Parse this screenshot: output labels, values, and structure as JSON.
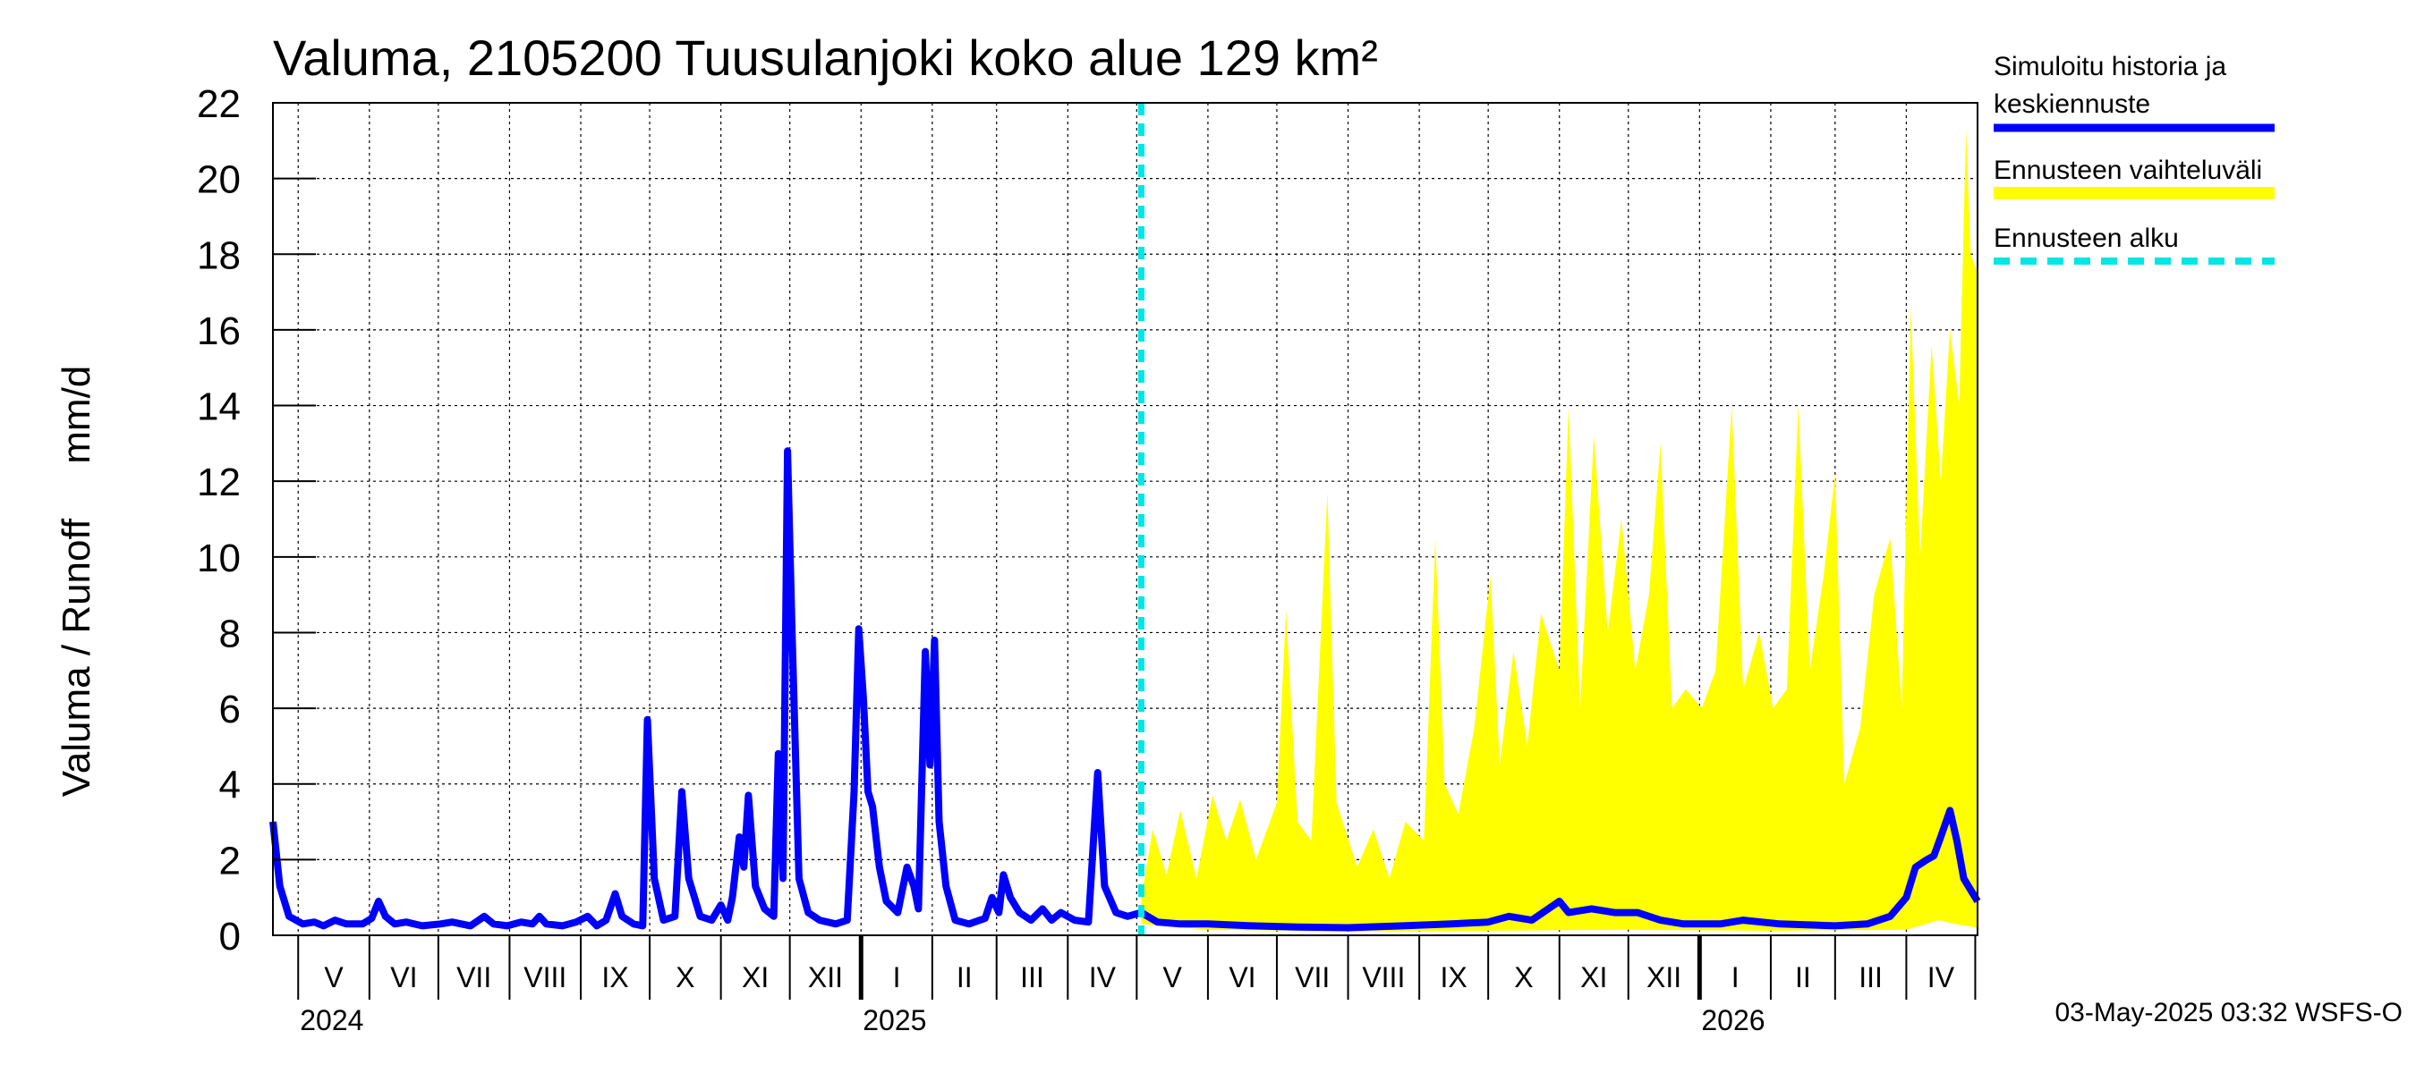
{
  "chart_data": {
    "type": "line",
    "title": "Valuma, 2105200 Tuusulanjoki koko alue 129 km²",
    "ylabel": "Valuma / Runoff     mm/d",
    "ylim": [
      0,
      22
    ],
    "yticks": [
      "0",
      "2",
      "4",
      "6",
      "8",
      "10",
      "12",
      "14",
      "16",
      "18",
      "20",
      "22"
    ],
    "xlim": [
      "2024-04-20",
      "2026-05-02"
    ],
    "grid": true,
    "months": [
      {
        "label": "V",
        "start": "2024-05-01",
        "end": "2024-06-01"
      },
      {
        "label": "VI",
        "start": "2024-06-01",
        "end": "2024-07-01"
      },
      {
        "label": "VII",
        "start": "2024-07-01",
        "end": "2024-08-01"
      },
      {
        "label": "VIII",
        "start": "2024-08-01",
        "end": "2024-09-01"
      },
      {
        "label": "IX",
        "start": "2024-09-01",
        "end": "2024-10-01"
      },
      {
        "label": "X",
        "start": "2024-10-01",
        "end": "2024-11-01"
      },
      {
        "label": "XI",
        "start": "2024-11-01",
        "end": "2024-12-01"
      },
      {
        "label": "XII",
        "start": "2024-12-01",
        "end": "2025-01-01"
      },
      {
        "label": "I",
        "start": "2025-01-01",
        "end": "2025-02-01"
      },
      {
        "label": "II",
        "start": "2025-02-01",
        "end": "2025-03-01"
      },
      {
        "label": "III",
        "start": "2025-03-01",
        "end": "2025-04-01"
      },
      {
        "label": "IV",
        "start": "2025-04-01",
        "end": "2025-05-01"
      },
      {
        "label": "V",
        "start": "2025-05-01",
        "end": "2025-06-01"
      },
      {
        "label": "VI",
        "start": "2025-06-01",
        "end": "2025-07-01"
      },
      {
        "label": "VII",
        "start": "2025-07-01",
        "end": "2025-08-01"
      },
      {
        "label": "VIII",
        "start": "2025-08-01",
        "end": "2025-09-01"
      },
      {
        "label": "IX",
        "start": "2025-09-01",
        "end": "2025-10-01"
      },
      {
        "label": "X",
        "start": "2025-10-01",
        "end": "2025-11-01"
      },
      {
        "label": "XI",
        "start": "2025-11-01",
        "end": "2025-12-01"
      },
      {
        "label": "XII",
        "start": "2025-12-01",
        "end": "2026-01-01"
      },
      {
        "label": "I",
        "start": "2026-01-01",
        "end": "2026-02-01"
      },
      {
        "label": "II",
        "start": "2026-02-01",
        "end": "2026-03-01"
      },
      {
        "label": "III",
        "start": "2026-03-01",
        "end": "2026-04-01"
      },
      {
        "label": "IV",
        "start": "2026-04-01",
        "end": "2026-05-01"
      }
    ],
    "years": [
      {
        "label": "2024",
        "date": "2024-05-01"
      },
      {
        "label": "2025",
        "date": "2025-01-01"
      },
      {
        "label": "2026",
        "date": "2026-01-01"
      }
    ],
    "forecast_start": "2025-05-03",
    "series": [
      {
        "name": "Simuloitu historia ja keskiennuste",
        "color": "#0000ff",
        "points": [
          [
            "2024-04-20",
            3.0
          ],
          [
            "2024-04-23",
            1.3
          ],
          [
            "2024-04-27",
            0.5
          ],
          [
            "2024-05-03",
            0.3
          ],
          [
            "2024-05-08",
            0.35
          ],
          [
            "2024-05-12",
            0.25
          ],
          [
            "2024-05-17",
            0.4
          ],
          [
            "2024-05-22",
            0.3
          ],
          [
            "2024-05-29",
            0.3
          ],
          [
            "2024-06-02",
            0.45
          ],
          [
            "2024-06-05",
            0.9
          ],
          [
            "2024-06-08",
            0.5
          ],
          [
            "2024-06-12",
            0.3
          ],
          [
            "2024-06-17",
            0.35
          ],
          [
            "2024-06-24",
            0.25
          ],
          [
            "2024-07-02",
            0.3
          ],
          [
            "2024-07-07",
            0.35
          ],
          [
            "2024-07-15",
            0.25
          ],
          [
            "2024-07-21",
            0.5
          ],
          [
            "2024-07-25",
            0.3
          ],
          [
            "2024-07-31",
            0.25
          ],
          [
            "2024-08-06",
            0.35
          ],
          [
            "2024-08-11",
            0.3
          ],
          [
            "2024-08-14",
            0.5
          ],
          [
            "2024-08-17",
            0.3
          ],
          [
            "2024-08-24",
            0.25
          ],
          [
            "2024-08-30",
            0.35
          ],
          [
            "2024-09-04",
            0.5
          ],
          [
            "2024-09-08",
            0.25
          ],
          [
            "2024-09-12",
            0.4
          ],
          [
            "2024-09-16",
            1.1
          ],
          [
            "2024-09-19",
            0.5
          ],
          [
            "2024-09-24",
            0.3
          ],
          [
            "2024-09-28",
            0.25
          ],
          [
            "2024-09-30",
            5.7
          ],
          [
            "2024-10-03",
            1.5
          ],
          [
            "2024-10-07",
            0.4
          ],
          [
            "2024-10-12",
            0.5
          ],
          [
            "2024-10-15",
            3.8
          ],
          [
            "2024-10-18",
            1.5
          ],
          [
            "2024-10-23",
            0.5
          ],
          [
            "2024-10-28",
            0.4
          ],
          [
            "2024-11-01",
            0.8
          ],
          [
            "2024-11-04",
            0.4
          ],
          [
            "2024-11-06",
            1.0
          ],
          [
            "2024-11-09",
            2.6
          ],
          [
            "2024-11-11",
            1.8
          ],
          [
            "2024-11-13",
            3.7
          ],
          [
            "2024-11-16",
            1.3
          ],
          [
            "2024-11-20",
            0.7
          ],
          [
            "2024-11-24",
            0.5
          ],
          [
            "2024-11-26",
            4.8
          ],
          [
            "2024-11-28",
            1.5
          ],
          [
            "2024-11-30",
            12.8
          ],
          [
            "2024-12-02",
            8.0
          ],
          [
            "2024-12-05",
            1.5
          ],
          [
            "2024-12-09",
            0.6
          ],
          [
            "2024-12-14",
            0.4
          ],
          [
            "2024-12-21",
            0.3
          ],
          [
            "2024-12-26",
            0.4
          ],
          [
            "2024-12-29",
            3.8
          ],
          [
            "2024-12-31",
            8.1
          ],
          [
            "2025-01-02",
            6.3
          ],
          [
            "2025-01-04",
            3.8
          ],
          [
            "2025-01-06",
            3.4
          ],
          [
            "2025-01-09",
            1.8
          ],
          [
            "2025-01-12",
            0.9
          ],
          [
            "2025-01-17",
            0.6
          ],
          [
            "2025-01-21",
            1.8
          ],
          [
            "2025-01-24",
            1.3
          ],
          [
            "2025-01-26",
            0.7
          ],
          [
            "2025-01-29",
            7.5
          ],
          [
            "2025-01-31",
            4.5
          ],
          [
            "2025-02-02",
            7.8
          ],
          [
            "2025-02-04",
            3.0
          ],
          [
            "2025-02-07",
            1.3
          ],
          [
            "2025-02-11",
            0.4
          ],
          [
            "2025-02-17",
            0.3
          ],
          [
            "2025-02-24",
            0.45
          ],
          [
            "2025-02-27",
            1.0
          ],
          [
            "2025-03-02",
            0.6
          ],
          [
            "2025-03-04",
            1.6
          ],
          [
            "2025-03-07",
            1.0
          ],
          [
            "2025-03-11",
            0.6
          ],
          [
            "2025-03-16",
            0.4
          ],
          [
            "2025-03-21",
            0.7
          ],
          [
            "2025-03-25",
            0.4
          ],
          [
            "2025-03-29",
            0.6
          ],
          [
            "2025-04-04",
            0.4
          ],
          [
            "2025-04-10",
            0.35
          ],
          [
            "2025-04-14",
            4.3
          ],
          [
            "2025-04-17",
            1.3
          ],
          [
            "2025-04-22",
            0.6
          ],
          [
            "2025-04-27",
            0.5
          ],
          [
            "2025-05-03",
            0.6
          ],
          [
            "2025-05-10",
            0.35
          ],
          [
            "2025-05-20",
            0.3
          ],
          [
            "2025-06-01",
            0.3
          ],
          [
            "2025-06-20",
            0.25
          ],
          [
            "2025-07-10",
            0.22
          ],
          [
            "2025-08-01",
            0.2
          ],
          [
            "2025-08-25",
            0.25
          ],
          [
            "2025-09-15",
            0.3
          ],
          [
            "2025-10-01",
            0.35
          ],
          [
            "2025-10-10",
            0.5
          ],
          [
            "2025-10-20",
            0.4
          ],
          [
            "2025-11-01",
            0.9
          ],
          [
            "2025-11-05",
            0.6
          ],
          [
            "2025-11-15",
            0.7
          ],
          [
            "2025-11-25",
            0.6
          ],
          [
            "2025-12-05",
            0.6
          ],
          [
            "2025-12-15",
            0.4
          ],
          [
            "2025-12-25",
            0.3
          ],
          [
            "2026-01-10",
            0.3
          ],
          [
            "2026-01-20",
            0.4
          ],
          [
            "2026-02-05",
            0.3
          ],
          [
            "2026-03-01",
            0.25
          ],
          [
            "2026-03-15",
            0.3
          ],
          [
            "2026-03-25",
            0.5
          ],
          [
            "2026-04-01",
            1.0
          ],
          [
            "2026-04-05",
            1.8
          ],
          [
            "2026-04-10",
            2.0
          ],
          [
            "2026-04-13",
            2.1
          ],
          [
            "2026-04-16",
            2.6
          ],
          [
            "2026-04-20",
            3.3
          ],
          [
            "2026-04-23",
            2.5
          ],
          [
            "2026-04-26",
            1.5
          ],
          [
            "2026-04-30",
            1.1
          ],
          [
            "2026-05-02",
            0.9
          ]
        ]
      },
      {
        "name": "Ennusteen vaihteluväli",
        "color": "#ffff00",
        "type": "area",
        "upper": [
          [
            "2025-05-03",
            1.0
          ],
          [
            "2025-05-08",
            2.8
          ],
          [
            "2025-05-14",
            1.6
          ],
          [
            "2025-05-20",
            3.3
          ],
          [
            "2025-05-27",
            1.5
          ],
          [
            "2025-06-03",
            3.7
          ],
          [
            "2025-06-09",
            2.5
          ],
          [
            "2025-06-15",
            3.6
          ],
          [
            "2025-06-22",
            2.0
          ],
          [
            "2025-07-01",
            3.5
          ],
          [
            "2025-07-05",
            8.6
          ],
          [
            "2025-07-10",
            3.0
          ],
          [
            "2025-07-16",
            2.5
          ],
          [
            "2025-07-23",
            11.7
          ],
          [
            "2025-07-27",
            3.5
          ],
          [
            "2025-08-05",
            1.8
          ],
          [
            "2025-08-12",
            2.8
          ],
          [
            "2025-08-19",
            1.5
          ],
          [
            "2025-08-26",
            3.0
          ],
          [
            "2025-09-03",
            2.5
          ],
          [
            "2025-09-08",
            10.5
          ],
          [
            "2025-09-12",
            4.0
          ],
          [
            "2025-09-18",
            3.2
          ],
          [
            "2025-09-25",
            5.5
          ],
          [
            "2025-10-02",
            9.5
          ],
          [
            "2025-10-06",
            4.5
          ],
          [
            "2025-10-12",
            7.5
          ],
          [
            "2025-10-18",
            5.0
          ],
          [
            "2025-10-24",
            8.5
          ],
          [
            "2025-11-01",
            7.0
          ],
          [
            "2025-11-05",
            14.0
          ],
          [
            "2025-11-10",
            6.0
          ],
          [
            "2025-11-16",
            13.2
          ],
          [
            "2025-11-22",
            8.0
          ],
          [
            "2025-11-28",
            11.0
          ],
          [
            "2025-12-04",
            7.0
          ],
          [
            "2025-12-10",
            9.0
          ],
          [
            "2025-12-15",
            13.0
          ],
          [
            "2025-12-20",
            6.0
          ],
          [
            "2025-12-26",
            6.5
          ],
          [
            "2026-01-02",
            6.0
          ],
          [
            "2026-01-08",
            7.0
          ],
          [
            "2026-01-15",
            14.0
          ],
          [
            "2026-01-20",
            6.5
          ],
          [
            "2026-01-27",
            8.0
          ],
          [
            "2026-02-02",
            6.0
          ],
          [
            "2026-02-08",
            6.5
          ],
          [
            "2026-02-13",
            14.0
          ],
          [
            "2026-02-18",
            7.0
          ],
          [
            "2026-02-24",
            9.5
          ],
          [
            "2026-03-01",
            12.2
          ],
          [
            "2026-03-05",
            4.0
          ],
          [
            "2026-03-12",
            5.5
          ],
          [
            "2026-03-18",
            9.0
          ],
          [
            "2026-03-25",
            10.5
          ],
          [
            "2026-03-30",
            6.0
          ],
          [
            "2026-04-03",
            16.6
          ],
          [
            "2026-04-07",
            10.0
          ],
          [
            "2026-04-12",
            15.6
          ],
          [
            "2026-04-16",
            12.0
          ],
          [
            "2026-04-20",
            16.0
          ],
          [
            "2026-04-24",
            14.0
          ],
          [
            "2026-04-27",
            21.3
          ],
          [
            "2026-04-29",
            18.0
          ],
          [
            "2026-05-02",
            17.5
          ]
        ],
        "lower": [
          [
            "2025-05-03",
            0.3
          ],
          [
            "2025-06-01",
            0.15
          ],
          [
            "2025-08-01",
            0.1
          ],
          [
            "2025-10-01",
            0.12
          ],
          [
            "2025-12-01",
            0.15
          ],
          [
            "2026-02-01",
            0.12
          ],
          [
            "2026-04-01",
            0.15
          ],
          [
            "2026-04-15",
            0.4
          ],
          [
            "2026-04-22",
            0.3
          ],
          [
            "2026-05-02",
            0.2
          ]
        ]
      },
      {
        "name": "Ennusteen alku",
        "color": "#00e5e5",
        "type": "vline",
        "date": "2025-05-03"
      }
    ],
    "legend_position": "right",
    "footer": "03-May-2025 03:32 WSFS-O"
  }
}
